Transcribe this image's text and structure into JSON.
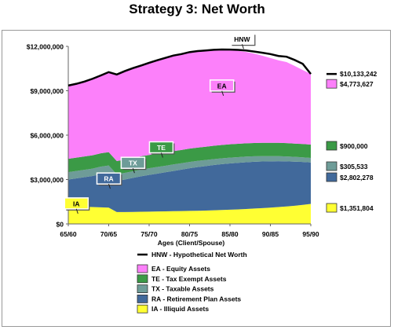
{
  "chart_data": {
    "type": "area",
    "title": "Strategy 3: Net Worth",
    "xlabel": "Ages (Client/Spouse)",
    "ylabel": "",
    "x": [
      0,
      1,
      2,
      3,
      4,
      5,
      6,
      7,
      8,
      9,
      10,
      11,
      12,
      13,
      14,
      15,
      16,
      17,
      18,
      19,
      20,
      21,
      22,
      23,
      24,
      25,
      26,
      27,
      28,
      29,
      30
    ],
    "x_tick_labels": [
      "65/60",
      "70/65",
      "75/70",
      "80/75",
      "85/80",
      "90/85",
      "95/90"
    ],
    "ylim": [
      0,
      12000000
    ],
    "y_ticks": [
      0,
      3000000,
      6000000,
      9000000,
      12000000
    ],
    "y_tick_labels": [
      "$0",
      "$3,000,000",
      "$6,000,000",
      "$9,000,000",
      "$12,000,000"
    ],
    "grid": false,
    "legend_position": "bottom",
    "series": [
      {
        "name": "IA - Illiquid Assets",
        "short": "IA",
        "color": "#ffff33",
        "values": [
          1200000,
          1180000,
          1160000,
          1140000,
          1120000,
          1100000,
          800000,
          800000,
          810000,
          820000,
          830000,
          840000,
          850000,
          860000,
          870000,
          880000,
          890000,
          900000,
          920000,
          940000,
          960000,
          980000,
          1010000,
          1040000,
          1070000,
          1100000,
          1140000,
          1180000,
          1230000,
          1290000,
          1351804
        ]
      },
      {
        "name": "RA - Retirement Plan Assets",
        "short": "RA",
        "color": "#41699b",
        "values": [
          1800000,
          1900000,
          2000000,
          2100000,
          2250000,
          2350000,
          2100000,
          2200000,
          2300000,
          2400000,
          2480000,
          2560000,
          2640000,
          2720000,
          2800000,
          2880000,
          2950000,
          3010000,
          3060000,
          3100000,
          3130000,
          3150000,
          3160000,
          3160000,
          3150000,
          3130000,
          3100000,
          3050000,
          2980000,
          2900000,
          2802278
        ]
      },
      {
        "name": "TX - Taxable Assets",
        "short": "TX",
        "color": "#6e9c98",
        "values": [
          500000,
          500000,
          500000,
          500000,
          500000,
          500000,
          450000,
          450000,
          450000,
          450000,
          450000,
          450000,
          440000,
          440000,
          430000,
          430000,
          420000,
          410000,
          400000,
          395000,
          390000,
          385000,
          380000,
          370000,
          360000,
          350000,
          340000,
          330000,
          320000,
          312000,
          305533
        ]
      },
      {
        "name": "TE - Tax Exempt Assets",
        "short": "TE",
        "color": "#3b9a46",
        "values": [
          900000,
          900000,
          900000,
          900000,
          900000,
          900000,
          900000,
          900000,
          900000,
          900000,
          900000,
          900000,
          900000,
          900000,
          900000,
          900000,
          900000,
          900000,
          900000,
          900000,
          900000,
          900000,
          900000,
          900000,
          900000,
          900000,
          900000,
          900000,
          900000,
          900000,
          900000
        ]
      },
      {
        "name": "EA - Equity Assets",
        "short": "EA",
        "color": "#fc80fa",
        "values": [
          4950000,
          4990000,
          5060000,
          5210000,
          5260000,
          5410000,
          5850000,
          5980000,
          6070000,
          6130000,
          6230000,
          6310000,
          6390000,
          6460000,
          6480000,
          6520000,
          6520000,
          6500000,
          6490000,
          6445000,
          6370000,
          6285000,
          6170000,
          6040000,
          5890000,
          5730000,
          5580000,
          5480000,
          5250000,
          4998000,
          4773627
        ]
      }
    ],
    "line": {
      "name": "HNW - Hypothetical Net Worth",
      "short": "HNW",
      "color": "#000000",
      "values": [
        9350000,
        9470000,
        9620000,
        9810000,
        10030000,
        10260000,
        10100000,
        10330000,
        10530000,
        10700000,
        10890000,
        11060000,
        11220000,
        11380000,
        11480000,
        11610000,
        11680000,
        11720000,
        11770000,
        11785000,
        11780000,
        11760000,
        11720000,
        11650000,
        11570000,
        11480000,
        11350000,
        11300000,
        11080000,
        10820000,
        10133242
      ]
    },
    "end_labels": {
      "HNW": "$10,133,242",
      "EA": "$4,773,627",
      "TE": "$900,000",
      "TX": "$305,533",
      "RA": "$2,802,278",
      "IA": "$1,351,804"
    },
    "callouts": [
      {
        "label": "HNW",
        "x": 21.5
      },
      {
        "label": "EA",
        "x": 19
      },
      {
        "label": "TE",
        "x": 11.5
      },
      {
        "label": "TX",
        "x": 8
      },
      {
        "label": "RA",
        "x": 5
      },
      {
        "label": "IA",
        "x": 1
      }
    ]
  }
}
